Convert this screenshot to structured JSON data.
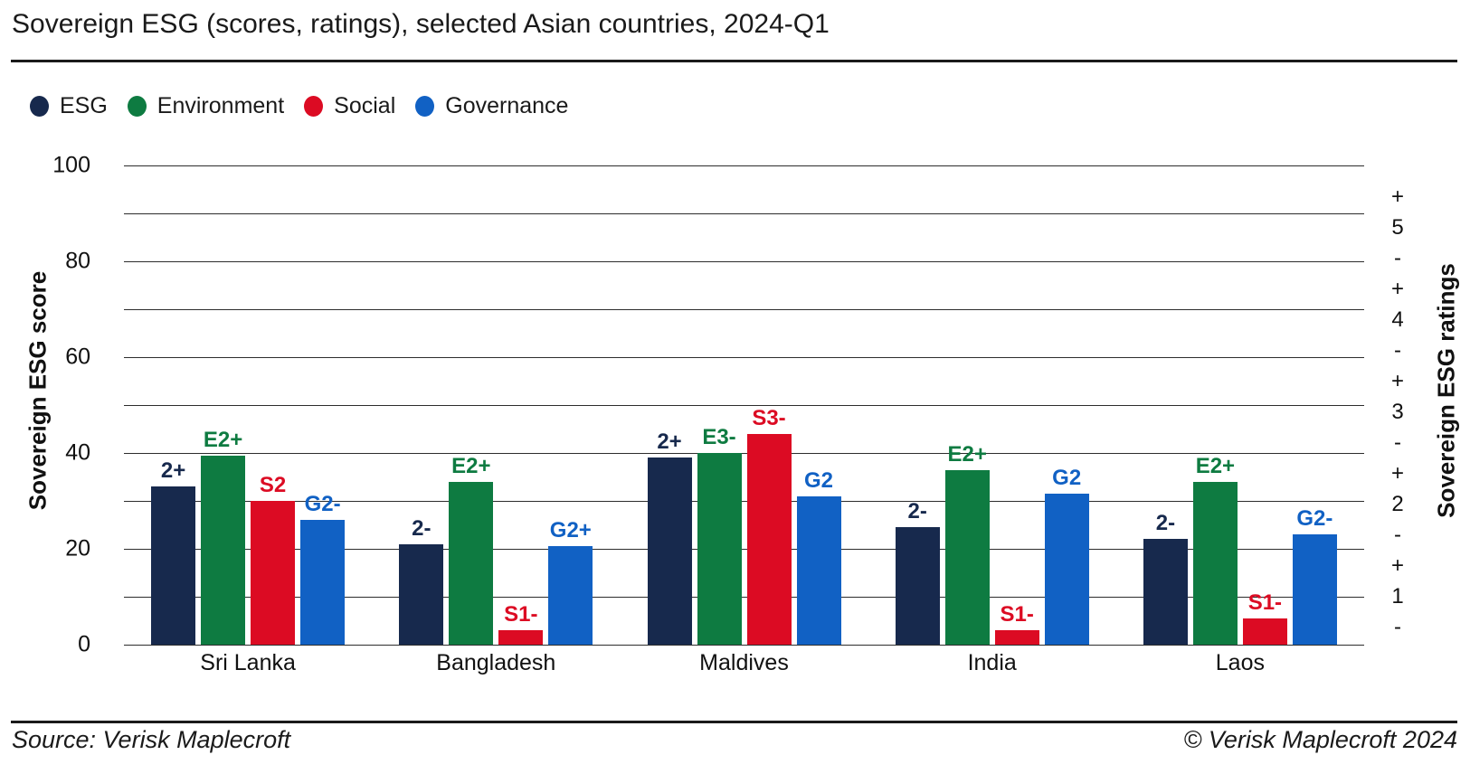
{
  "title": "Sovereign ESG (scores, ratings), selected Asian countries, 2024-Q1",
  "footer": {
    "source": "Source: Verisk Maplecroft",
    "copyright": "© Verisk Maplecroft 2024"
  },
  "chart_data": {
    "type": "bar",
    "title": "Sovereign ESG (scores, ratings), selected Asian countries, 2024-Q1",
    "categories": [
      "Sri Lanka",
      "Bangladesh",
      "Maldives",
      "India",
      "Laos"
    ],
    "series": [
      {
        "name": "ESG",
        "color": "#17294D",
        "values": [
          33,
          21,
          39,
          24.5,
          22
        ],
        "labels": [
          "2+",
          "2-",
          "2+",
          "2-",
          "2-"
        ]
      },
      {
        "name": "Environment",
        "color": "#0E7B41",
        "values": [
          39.5,
          34,
          40,
          36.5,
          34
        ],
        "labels": [
          "E2+",
          "E2+",
          "E3-",
          "E2+",
          "E2+"
        ]
      },
      {
        "name": "Social",
        "color": "#DC0B23",
        "values": [
          30,
          3,
          44,
          3,
          5.5
        ],
        "labels": [
          "S2",
          "S1-",
          "S3-",
          "S1-",
          "S1-"
        ]
      },
      {
        "name": "Governance",
        "color": "#1161C4",
        "values": [
          26,
          20.5,
          31,
          31.5,
          23
        ],
        "labels": [
          "G2-",
          "G2+",
          "G2",
          "G2",
          "G2-"
        ]
      }
    ],
    "ylabel_left": "Sovereign ESG score",
    "ylabel_right": "Sovereign ESG ratings",
    "ylim": [
      0,
      100
    ],
    "yticks": [
      0,
      20,
      40,
      60,
      80,
      100
    ],
    "grid_step": 10,
    "grid": "horizontal",
    "legend_position": "top-left",
    "right_axis_ticks": [
      "+",
      "5",
      "-",
      "+",
      "4",
      "-",
      "+",
      "3",
      "-",
      "+",
      "2",
      "-",
      "+",
      "1",
      "-"
    ]
  }
}
